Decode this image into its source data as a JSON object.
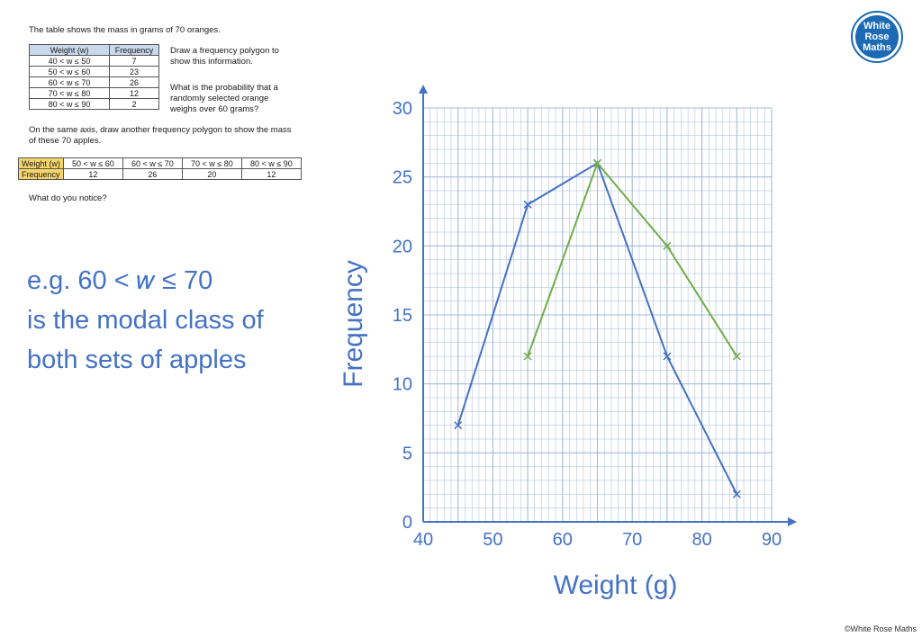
{
  "question": {
    "intro": "The table shows the mass in grams of 70 oranges.",
    "oranges_table": {
      "headers": [
        "Weight (w)",
        "Frequency"
      ],
      "rows": [
        [
          "40 < w ≤ 50",
          "7"
        ],
        [
          "50 < w ≤ 60",
          "23"
        ],
        [
          "60 < w ≤ 70",
          "26"
        ],
        [
          "70 < w ≤ 80",
          "12"
        ],
        [
          "80 < w ≤ 90",
          "2"
        ]
      ]
    },
    "instruction": "Draw a frequency polygon to show this information.",
    "probability_question": "What is the probability that a randomly selected orange weighs over 60 grams?",
    "apples_instruction": "On the same axis, draw another frequency polygon to show the mass of these 70 apples.",
    "apples_table": {
      "row_headers": [
        "Weight (w)",
        "Frequency"
      ],
      "classes": [
        "50 < w ≤ 60",
        "60 < w ≤ 70",
        "70 < w ≤ 80",
        "80 < w ≤ 90"
      ],
      "frequencies": [
        "12",
        "26",
        "20",
        "12"
      ]
    },
    "notice": "What do you notice?"
  },
  "answer": {
    "line1": "e.g. 60 < 𝑤 ≤ 70",
    "line2": "is the modal class of",
    "line3": "both sets of apples"
  },
  "logo": {
    "line1": "White",
    "line2": "Rose",
    "line3": "Maths"
  },
  "copyright": "©White Rose Maths",
  "colors": {
    "accent": "#4472c4",
    "green": "#70ad47",
    "grid": "#a6b9d9"
  },
  "chart_data": {
    "type": "line",
    "xlabel": "Weight (g)",
    "ylabel": "Frequency",
    "xlim": [
      40,
      90
    ],
    "ylim": [
      0,
      30
    ],
    "x_ticks": [
      "40",
      "50",
      "60",
      "70",
      "80",
      "90"
    ],
    "y_ticks": [
      "0",
      "5",
      "10",
      "15",
      "20",
      "25",
      "30"
    ],
    "grid": true,
    "series": [
      {
        "color": "#4472c4",
        "x": [
          45,
          55,
          65,
          75,
          85
        ],
        "y": [
          7,
          23,
          26,
          12,
          2
        ]
      },
      {
        "color": "#70ad47",
        "x": [
          55,
          65,
          75,
          85
        ],
        "y": [
          12,
          26,
          20,
          12
        ]
      }
    ]
  }
}
